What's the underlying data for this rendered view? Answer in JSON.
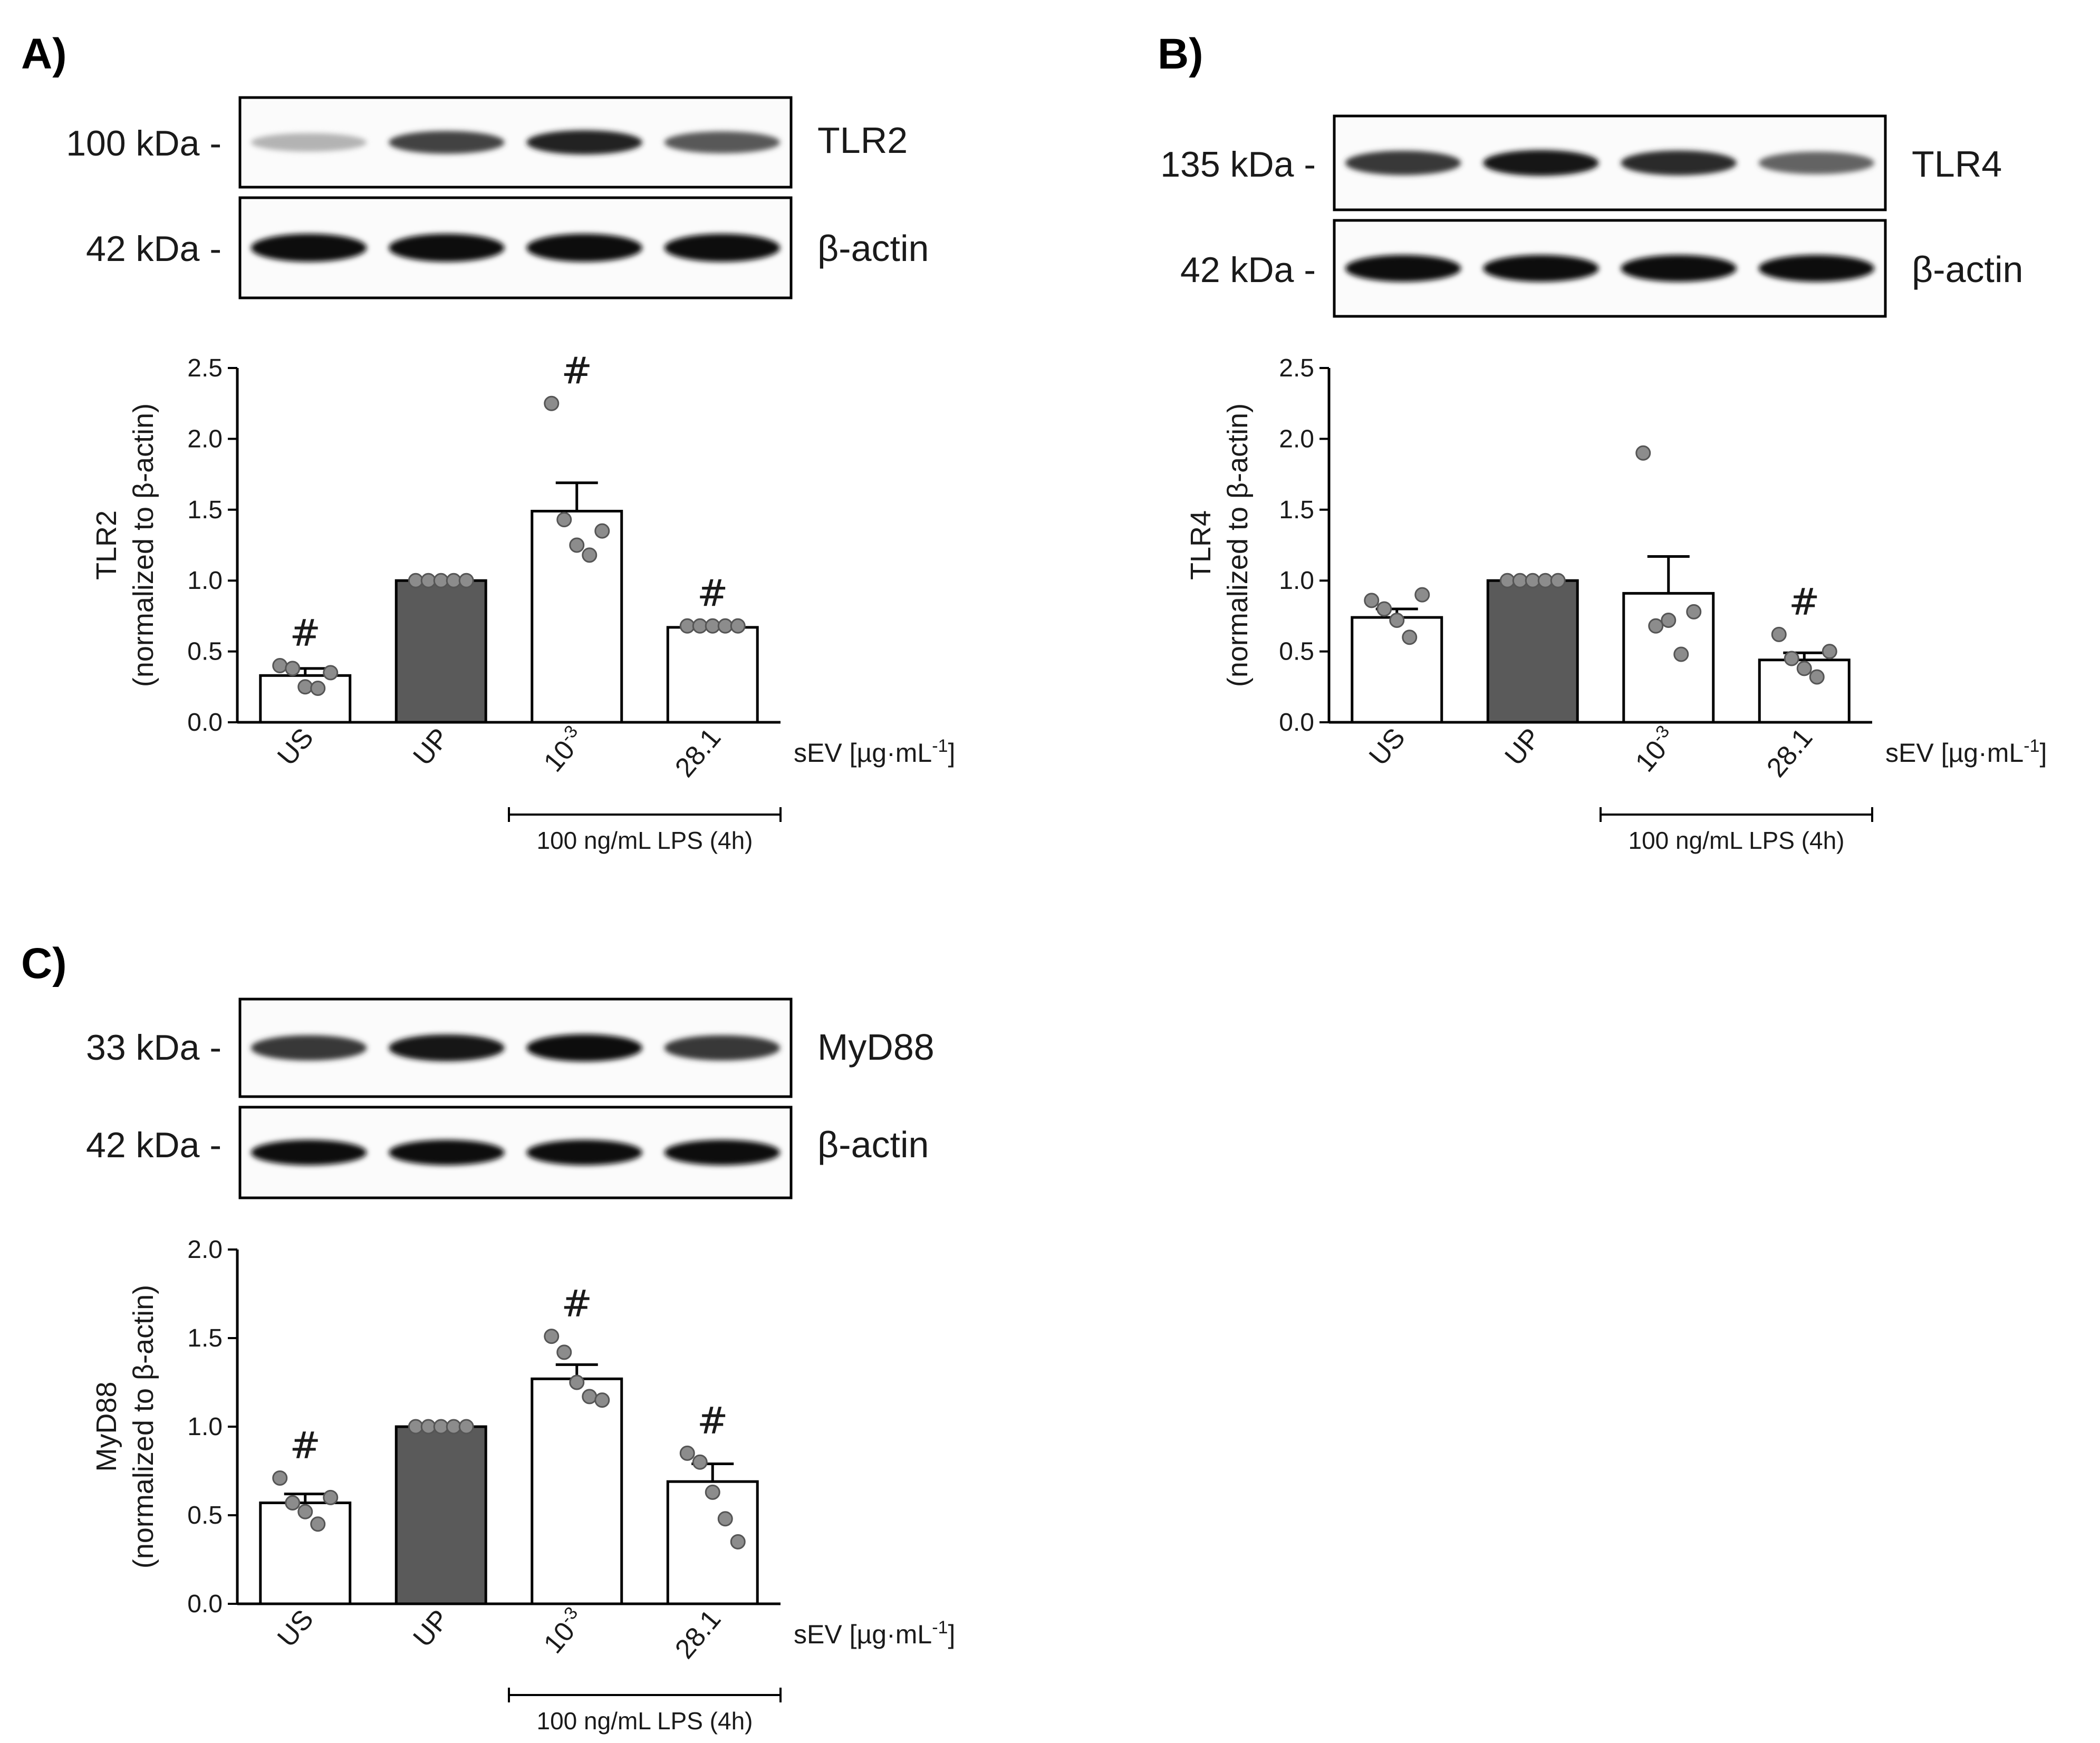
{
  "panels": [
    {
      "label": "A)",
      "blots": [
        {
          "kda": "100 kDa -",
          "name": "TLR2",
          "intensity": [
            0.25,
            0.75,
            0.9,
            0.65
          ]
        },
        {
          "kda": "42 kDa -",
          "name": "β-actin",
          "intensity": [
            1.0,
            1.0,
            1.0,
            1.0
          ]
        }
      ]
    },
    {
      "label": "B)",
      "blots": [
        {
          "kda": "135 kDa -",
          "name": "TLR4",
          "intensity": [
            0.8,
            0.95,
            0.85,
            0.6
          ]
        },
        {
          "kda": "42 kDa -",
          "name": "β-actin",
          "intensity": [
            1.0,
            1.0,
            1.0,
            1.0
          ]
        }
      ]
    },
    {
      "label": "C)",
      "blots": [
        {
          "kda": "33 kDa -",
          "name": "MyD88",
          "intensity": [
            0.8,
            0.95,
            1.0,
            0.8
          ]
        },
        {
          "kda": "42 kDa -",
          "name": "β-actin",
          "intensity": [
            1.0,
            1.0,
            1.0,
            1.0
          ]
        }
      ]
    }
  ],
  "shared": {
    "categories": [
      "US",
      "UP",
      "10-3",
      "28.1"
    ],
    "unit_label": "sEV [µg·mL-1]",
    "condition_label": "100 ng/mL LPS (4h)",
    "significance_mark": "#",
    "colors": {
      "treated_bar": "#5a5a5a",
      "bar_fill": "#ffffff",
      "points": "#8c8c8c",
      "axis": "#000000"
    }
  },
  "chart_data": [
    {
      "type": "bar",
      "panel": "A)",
      "ylabel": [
        "TLR2",
        "(normalized to β-actin)"
      ],
      "categories": [
        "US",
        "UP",
        "10-3",
        "28.1"
      ],
      "values": [
        0.33,
        1.0,
        1.49,
        0.67
      ],
      "sem": [
        0.05,
        0.0,
        0.2,
        0.01
      ],
      "points": [
        [
          0.4,
          0.38,
          0.25,
          0.24,
          0.35
        ],
        [
          1.0,
          1.0,
          1.0,
          1.0,
          1.0
        ],
        [
          2.25,
          1.43,
          1.25,
          1.18,
          1.35
        ],
        [
          0.68,
          0.68,
          0.68,
          0.68,
          0.68
        ]
      ],
      "significant": [
        true,
        false,
        true,
        true
      ],
      "ylim": [
        0,
        2.5
      ],
      "yticks": [
        "0.0",
        "0.5",
        "1.0",
        "1.5",
        "2.0",
        "2.5"
      ]
    },
    {
      "type": "bar",
      "panel": "B)",
      "ylabel": [
        "TLR4",
        "(normalized to β-actin)"
      ],
      "categories": [
        "US",
        "UP",
        "10-3",
        "28.1"
      ],
      "values": [
        0.74,
        1.0,
        0.91,
        0.44
      ],
      "sem": [
        0.06,
        0.0,
        0.26,
        0.05
      ],
      "points": [
        [
          0.86,
          0.8,
          0.72,
          0.6,
          0.9
        ],
        [
          1.0,
          1.0,
          1.0,
          1.0,
          1.0
        ],
        [
          1.9,
          0.68,
          0.72,
          0.48,
          0.78
        ],
        [
          0.62,
          0.45,
          0.38,
          0.32,
          0.5
        ]
      ],
      "significant": [
        false,
        false,
        false,
        true
      ],
      "ylim": [
        0,
        2.5
      ],
      "yticks": [
        "0.0",
        "0.5",
        "1.0",
        "1.5",
        "2.0",
        "2.5"
      ]
    },
    {
      "type": "bar",
      "panel": "C)",
      "ylabel": [
        "MyD88",
        "(normalized to β-actin)"
      ],
      "categories": [
        "US",
        "UP",
        "10-3",
        "28.1"
      ],
      "values": [
        0.57,
        1.0,
        1.27,
        0.69
      ],
      "sem": [
        0.05,
        0.0,
        0.08,
        0.1
      ],
      "points": [
        [
          0.71,
          0.57,
          0.52,
          0.45,
          0.6
        ],
        [
          1.0,
          1.0,
          1.0,
          1.0,
          1.0
        ],
        [
          1.51,
          1.42,
          1.25,
          1.17,
          1.15
        ],
        [
          0.85,
          0.8,
          0.63,
          0.48,
          0.35
        ]
      ],
      "significant": [
        true,
        false,
        true,
        true
      ],
      "ylim": [
        0,
        2.0
      ],
      "yticks": [
        "0.0",
        "0.5",
        "1.0",
        "1.5",
        "2.0"
      ]
    }
  ]
}
